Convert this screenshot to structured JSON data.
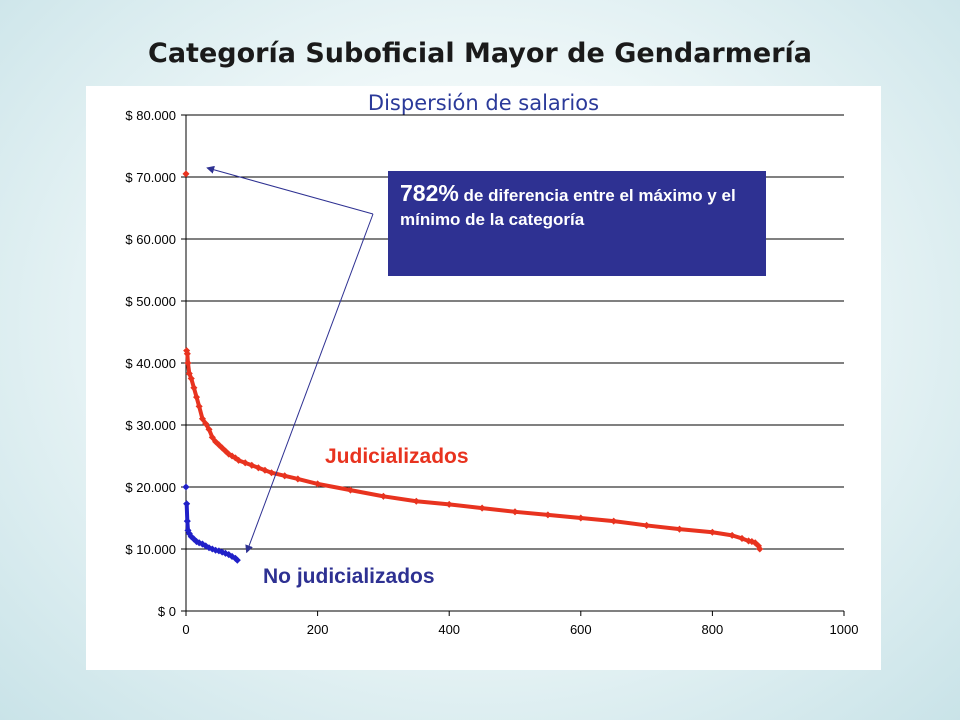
{
  "slide": {
    "title": "Categoría Suboficial Mayor de Gendarmería"
  },
  "chart_data": {
    "type": "scatter",
    "title": "Dispersión de salarios",
    "xlabel": "",
    "ylabel": "",
    "xlim": [
      0,
      1000
    ],
    "ylim": [
      0,
      80000
    ],
    "x_ticks": [
      0,
      200,
      400,
      600,
      800,
      1000
    ],
    "x_tick_labels": [
      "0",
      "200",
      "400",
      "600",
      "800",
      "1000"
    ],
    "y_ticks": [
      0,
      10000,
      20000,
      30000,
      40000,
      50000,
      60000,
      70000,
      80000
    ],
    "y_tick_labels": [
      "$ 0",
      "$ 10.000",
      "$ 20.000",
      "$ 30.000",
      "$ 40.000",
      "$ 50.000",
      "$ 60.000",
      "$ 70.000",
      "$ 80.000"
    ],
    "grid": true,
    "series": [
      {
        "name": "Judicializados",
        "color": "#e8331f",
        "x": [
          0,
          1,
          2,
          3,
          5,
          8,
          12,
          16,
          20,
          25,
          30,
          35,
          40,
          45,
          50,
          55,
          60,
          65,
          70,
          75,
          80,
          90,
          100,
          110,
          120,
          130,
          150,
          170,
          200,
          250,
          300,
          350,
          400,
          450,
          500,
          550,
          600,
          650,
          700,
          750,
          800,
          830,
          845,
          855,
          860,
          865,
          870,
          872
        ],
        "y": [
          70500,
          42000,
          41500,
          40000,
          38300,
          37500,
          36000,
          34500,
          33000,
          31000,
          30200,
          29300,
          28000,
          27300,
          26800,
          26300,
          25800,
          25300,
          25000,
          24700,
          24300,
          23900,
          23500,
          23100,
          22700,
          22300,
          21800,
          21300,
          20500,
          19500,
          18500,
          17700,
          17200,
          16600,
          16000,
          15500,
          15000,
          14500,
          13800,
          13200,
          12700,
          12200,
          11700,
          11300,
          11200,
          11000,
          10500,
          10000
        ]
      },
      {
        "name": "No judicializados",
        "color": "#2020c8",
        "x": [
          0,
          1,
          2,
          3,
          5,
          8,
          12,
          16,
          20,
          25,
          30,
          35,
          40,
          45,
          50,
          55,
          60,
          65,
          70,
          75,
          78
        ],
        "y": [
          20000,
          17300,
          14500,
          13000,
          12500,
          12000,
          11600,
          11200,
          11000,
          10800,
          10500,
          10200,
          10000,
          9800,
          9700,
          9500,
          9300,
          9100,
          8800,
          8500,
          8200
        ]
      }
    ],
    "annotations": [
      {
        "text_big": "782%",
        "text_rest": " de diferencia entre el máximo y el mínimo de la categoría",
        "points_to": [
          {
            "x": 20,
            "y": 70500
          },
          {
            "x": 80,
            "y": 8500
          }
        ]
      }
    ]
  }
}
